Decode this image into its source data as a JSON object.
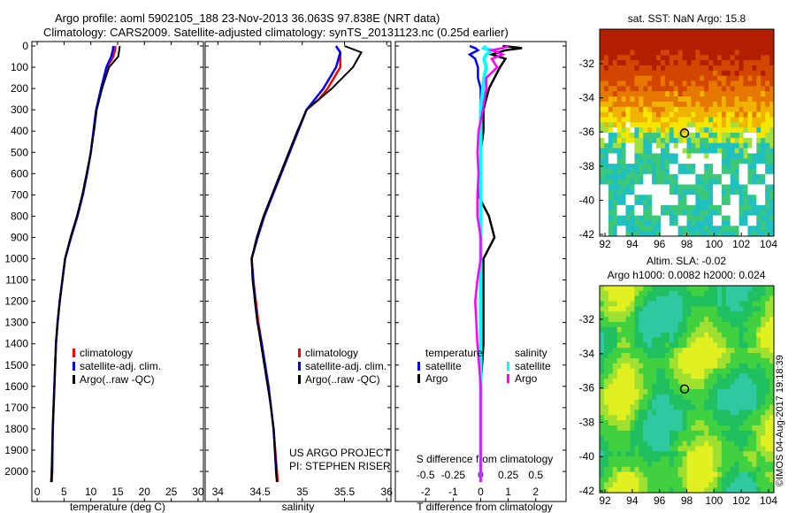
{
  "titles": {
    "line1": "Argo profile: aoml 5902105_188 23-Nov-2013 36.063S 97.838E (NRT data)",
    "line2": "Climatology: CARS2009. Satellite-adjusted climatology: synTS_20131123.nc (0.25d earlier)"
  },
  "credit": {
    "project": "US ARGO PROJECT",
    "pi": "PI: STEPHEN RISER",
    "imos": "©IMOS 04-Aug-2017 19:18:39"
  },
  "colors": {
    "clim": "#ff0000",
    "sat": "#0000ff",
    "argo": "#000000",
    "sal_sat": "#00ffff",
    "sal_argo": "#ff00ff"
  },
  "chart_data": [
    {
      "type": "line",
      "id": "temperature",
      "xlabel": "temperature (deg C)",
      "xlim": [
        -1,
        31
      ],
      "xticks": [
        0,
        5,
        10,
        15,
        20,
        25,
        30
      ],
      "ylim": [
        0,
        2060
      ],
      "yticks": [
        0,
        100,
        200,
        300,
        400,
        500,
        600,
        700,
        800,
        900,
        1000,
        1100,
        1200,
        1300,
        1400,
        1500,
        1600,
        1700,
        1800,
        1900,
        2000
      ],
      "legend": [
        "climatology",
        "satellite-adj. clim.",
        "Argo(..raw -QC)"
      ],
      "depth": [
        0,
        20,
        50,
        100,
        200,
        300,
        400,
        500,
        600,
        700,
        800,
        900,
        1000,
        1100,
        1200,
        1300,
        1400,
        1600,
        1800,
        2000,
        2050
      ],
      "series": [
        {
          "name": "climatology",
          "values": [
            14.6,
            14.5,
            14.2,
            13,
            12,
            11,
            10.5,
            10,
            9.3,
            8.5,
            7.5,
            6.3,
            5.2,
            4.7,
            4.2,
            3.8,
            3.5,
            3.2,
            2.9,
            2.7,
            2.6
          ]
        },
        {
          "name": "satellite-adj. clim.",
          "values": [
            14.2,
            14.1,
            13.8,
            12.9,
            11.9,
            11,
            10.5,
            10,
            9.3,
            8.5,
            7.5,
            6.3,
            5.2,
            4.7,
            4.2,
            3.8,
            3.5,
            3.2,
            2.9,
            2.8,
            2.7
          ]
        },
        {
          "name": "Argo",
          "values": [
            15.4,
            15.3,
            15.1,
            13.4,
            12.1,
            11.1,
            10.6,
            10,
            9.2,
            8.4,
            7.4,
            6.2,
            5.2,
            4.7,
            4.2,
            3.8,
            3.5,
            3.2,
            2.9,
            2.7,
            2.6
          ]
        }
      ]
    },
    {
      "type": "line",
      "id": "salinity",
      "xlabel": "salinity",
      "xlim": [
        33.85,
        36.05
      ],
      "xticks": [
        34,
        34.5,
        35,
        35.5,
        36
      ],
      "legend": [
        "climatology",
        "satellite-adj. clim.",
        "Argo(..raw -QC)"
      ],
      "depth": [
        0,
        30,
        100,
        200,
        250,
        300,
        400,
        500,
        600,
        700,
        800,
        900,
        1000,
        1100,
        1200,
        1300,
        1400,
        1500,
        1600,
        1700,
        1800,
        2000,
        2050
      ],
      "series": [
        {
          "name": "climatology",
          "values": [
            35.4,
            35.45,
            35.45,
            35.3,
            35.2,
            35.05,
            34.95,
            34.85,
            34.75,
            34.65,
            34.55,
            34.47,
            34.4,
            34.42,
            34.45,
            34.48,
            34.52,
            34.56,
            34.6,
            34.63,
            34.66,
            34.7,
            34.71
          ]
        },
        {
          "name": "satellite-adj. clim.",
          "values": [
            35.4,
            35.45,
            35.4,
            35.25,
            35.15,
            35.05,
            34.95,
            34.85,
            34.75,
            34.65,
            34.55,
            34.47,
            34.4,
            34.42,
            34.44,
            34.47,
            34.52,
            34.56,
            34.6,
            34.63,
            34.66,
            34.69,
            34.7
          ]
        },
        {
          "name": "Argo",
          "values": [
            35.5,
            35.7,
            35.6,
            35.35,
            35.2,
            35.05,
            34.94,
            34.84,
            34.74,
            34.64,
            34.54,
            34.46,
            34.4,
            34.41,
            34.44,
            34.47,
            34.51,
            34.55,
            34.59,
            34.63,
            34.66,
            34.69,
            34.7
          ]
        }
      ]
    },
    {
      "type": "line",
      "id": "difference",
      "xlabel": "T difference from climatology",
      "x2label": "S difference from climatology",
      "xlim": [
        -3.1,
        3.1
      ],
      "xticks": [
        -2,
        -1,
        0,
        1,
        2
      ],
      "x2ticks": [
        "-0.5",
        "-0.25",
        "0",
        "0.25",
        "0.5"
      ],
      "legend": {
        "temperature": "temperature",
        "salinity": "salinity",
        "t_sat": "satellite",
        "t_argo": "Argo",
        "s_sat": "satellite",
        "s_argo": "Argo"
      },
      "depth": [
        0,
        10,
        20,
        40,
        60,
        100,
        150,
        200,
        300,
        400,
        500,
        600,
        700,
        800,
        900,
        1000,
        1100,
        1200,
        1400,
        1600,
        1800,
        2050
      ],
      "series": [
        {
          "name": "T satellite",
          "values": [
            -0.4,
            -0.2,
            -0.1,
            -0.4,
            -0.2,
            -0.1,
            -0.1,
            0,
            0,
            0,
            0,
            0,
            0,
            0,
            0,
            0,
            0,
            0,
            0,
            0,
            0,
            0
          ]
        },
        {
          "name": "T Argo",
          "values": [
            0.8,
            1.5,
            0.9,
            0.4,
            0.9,
            0.7,
            0.5,
            0.3,
            0.1,
            0.1,
            0,
            0,
            -0.1,
            0.3,
            0.5,
            0.1,
            0.1,
            0.1,
            0.1,
            0,
            0,
            0
          ]
        },
        {
          "name": "S satellite",
          "values": [
            0.05,
            0.03,
            0.1,
            0.05,
            0.03,
            0.05,
            0.03,
            0.02,
            0,
            0,
            0,
            0,
            0,
            0,
            0,
            0,
            0,
            0,
            0,
            0,
            0,
            0
          ]
        },
        {
          "name": "S Argo",
          "values": [
            0.25,
            0.2,
            0.1,
            0.2,
            0.1,
            0.15,
            0.05,
            0.05,
            0.02,
            -0.02,
            -0.03,
            -0.02,
            -0.03,
            -0.03,
            0,
            0,
            -0.03,
            -0.05,
            -0.03,
            0,
            0,
            0
          ]
        }
      ]
    },
    {
      "type": "heatmap",
      "id": "sst-map",
      "title": "sat. SST: NaN Argo: 15.8",
      "xticks": [
        92,
        94,
        96,
        98,
        100,
        102,
        104
      ],
      "yticks": [
        -32,
        -34,
        -36,
        -38,
        -40,
        -42
      ],
      "marker": [
        97.838,
        -36.063
      ]
    },
    {
      "type": "heatmap",
      "id": "sla-map",
      "title": "Altim. SLA: -0.02",
      "subtitle": "Argo h1000: 0.0082 h2000: 0.024",
      "xticks": [
        92,
        94,
        96,
        98,
        100,
        102,
        104
      ],
      "yticks": [
        -32,
        -34,
        -36,
        -38,
        -40,
        -42
      ],
      "marker": [
        97.838,
        -36.063
      ]
    }
  ]
}
